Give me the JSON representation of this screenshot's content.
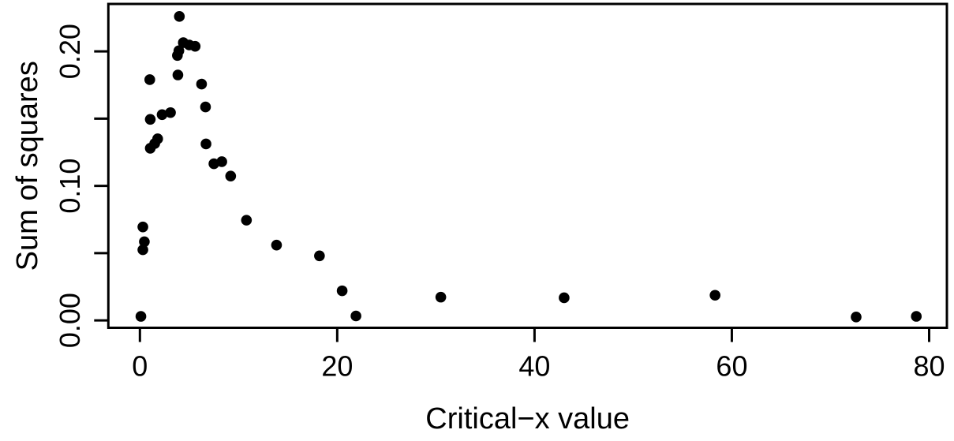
{
  "chart_data": {
    "type": "scatter",
    "title": "",
    "xlabel": "Critical−x value",
    "ylabel": "Sum of squares",
    "xlim": [
      -3.2,
      81.8
    ],
    "ylim": [
      -0.0055,
      0.2353
    ],
    "grid": false,
    "legend": null,
    "marker": {
      "shape": "filled-circle",
      "color": "#000000",
      "radius_px": 6.8
    },
    "frame_color": "#000000",
    "background_color": "#ffffff",
    "x_ticks": [
      {
        "value": 0,
        "label": "0"
      },
      {
        "value": 20,
        "label": "20"
      },
      {
        "value": 40,
        "label": "40"
      },
      {
        "value": 60,
        "label": "60"
      },
      {
        "value": 80,
        "label": "80"
      }
    ],
    "y_ticks": [
      {
        "value": 0.0,
        "label": "0.00"
      },
      {
        "value": 0.05,
        "label": ""
      },
      {
        "value": 0.1,
        "label": "0.10"
      },
      {
        "value": 0.15,
        "label": ""
      },
      {
        "value": 0.2,
        "label": "0.20"
      }
    ],
    "points": [
      [
        0.1,
        0.003
      ],
      [
        0.3,
        0.0695
      ],
      [
        0.45,
        0.0585
      ],
      [
        0.3,
        0.0525
      ],
      [
        1.0,
        0.179
      ],
      [
        1.05,
        0.1495
      ],
      [
        2.25,
        0.153
      ],
      [
        3.1,
        0.1545
      ],
      [
        1.05,
        0.128
      ],
      [
        1.5,
        0.1315
      ],
      [
        1.8,
        0.135
      ],
      [
        4.0,
        0.226
      ],
      [
        4.4,
        0.2065
      ],
      [
        5.0,
        0.2048
      ],
      [
        5.6,
        0.2038
      ],
      [
        3.95,
        0.2005
      ],
      [
        3.8,
        0.197
      ],
      [
        3.85,
        0.1825
      ],
      [
        6.25,
        0.1757
      ],
      [
        6.65,
        0.1587
      ],
      [
        6.7,
        0.1312
      ],
      [
        7.5,
        0.1165
      ],
      [
        8.3,
        0.118
      ],
      [
        9.2,
        0.1073
      ],
      [
        10.8,
        0.0745
      ],
      [
        13.85,
        0.056
      ],
      [
        18.2,
        0.048
      ],
      [
        20.5,
        0.022
      ],
      [
        21.9,
        0.0033
      ],
      [
        30.5,
        0.0173
      ],
      [
        43.0,
        0.0168
      ],
      [
        58.3,
        0.0187
      ],
      [
        72.6,
        0.0025
      ],
      [
        78.7,
        0.003
      ]
    ]
  }
}
